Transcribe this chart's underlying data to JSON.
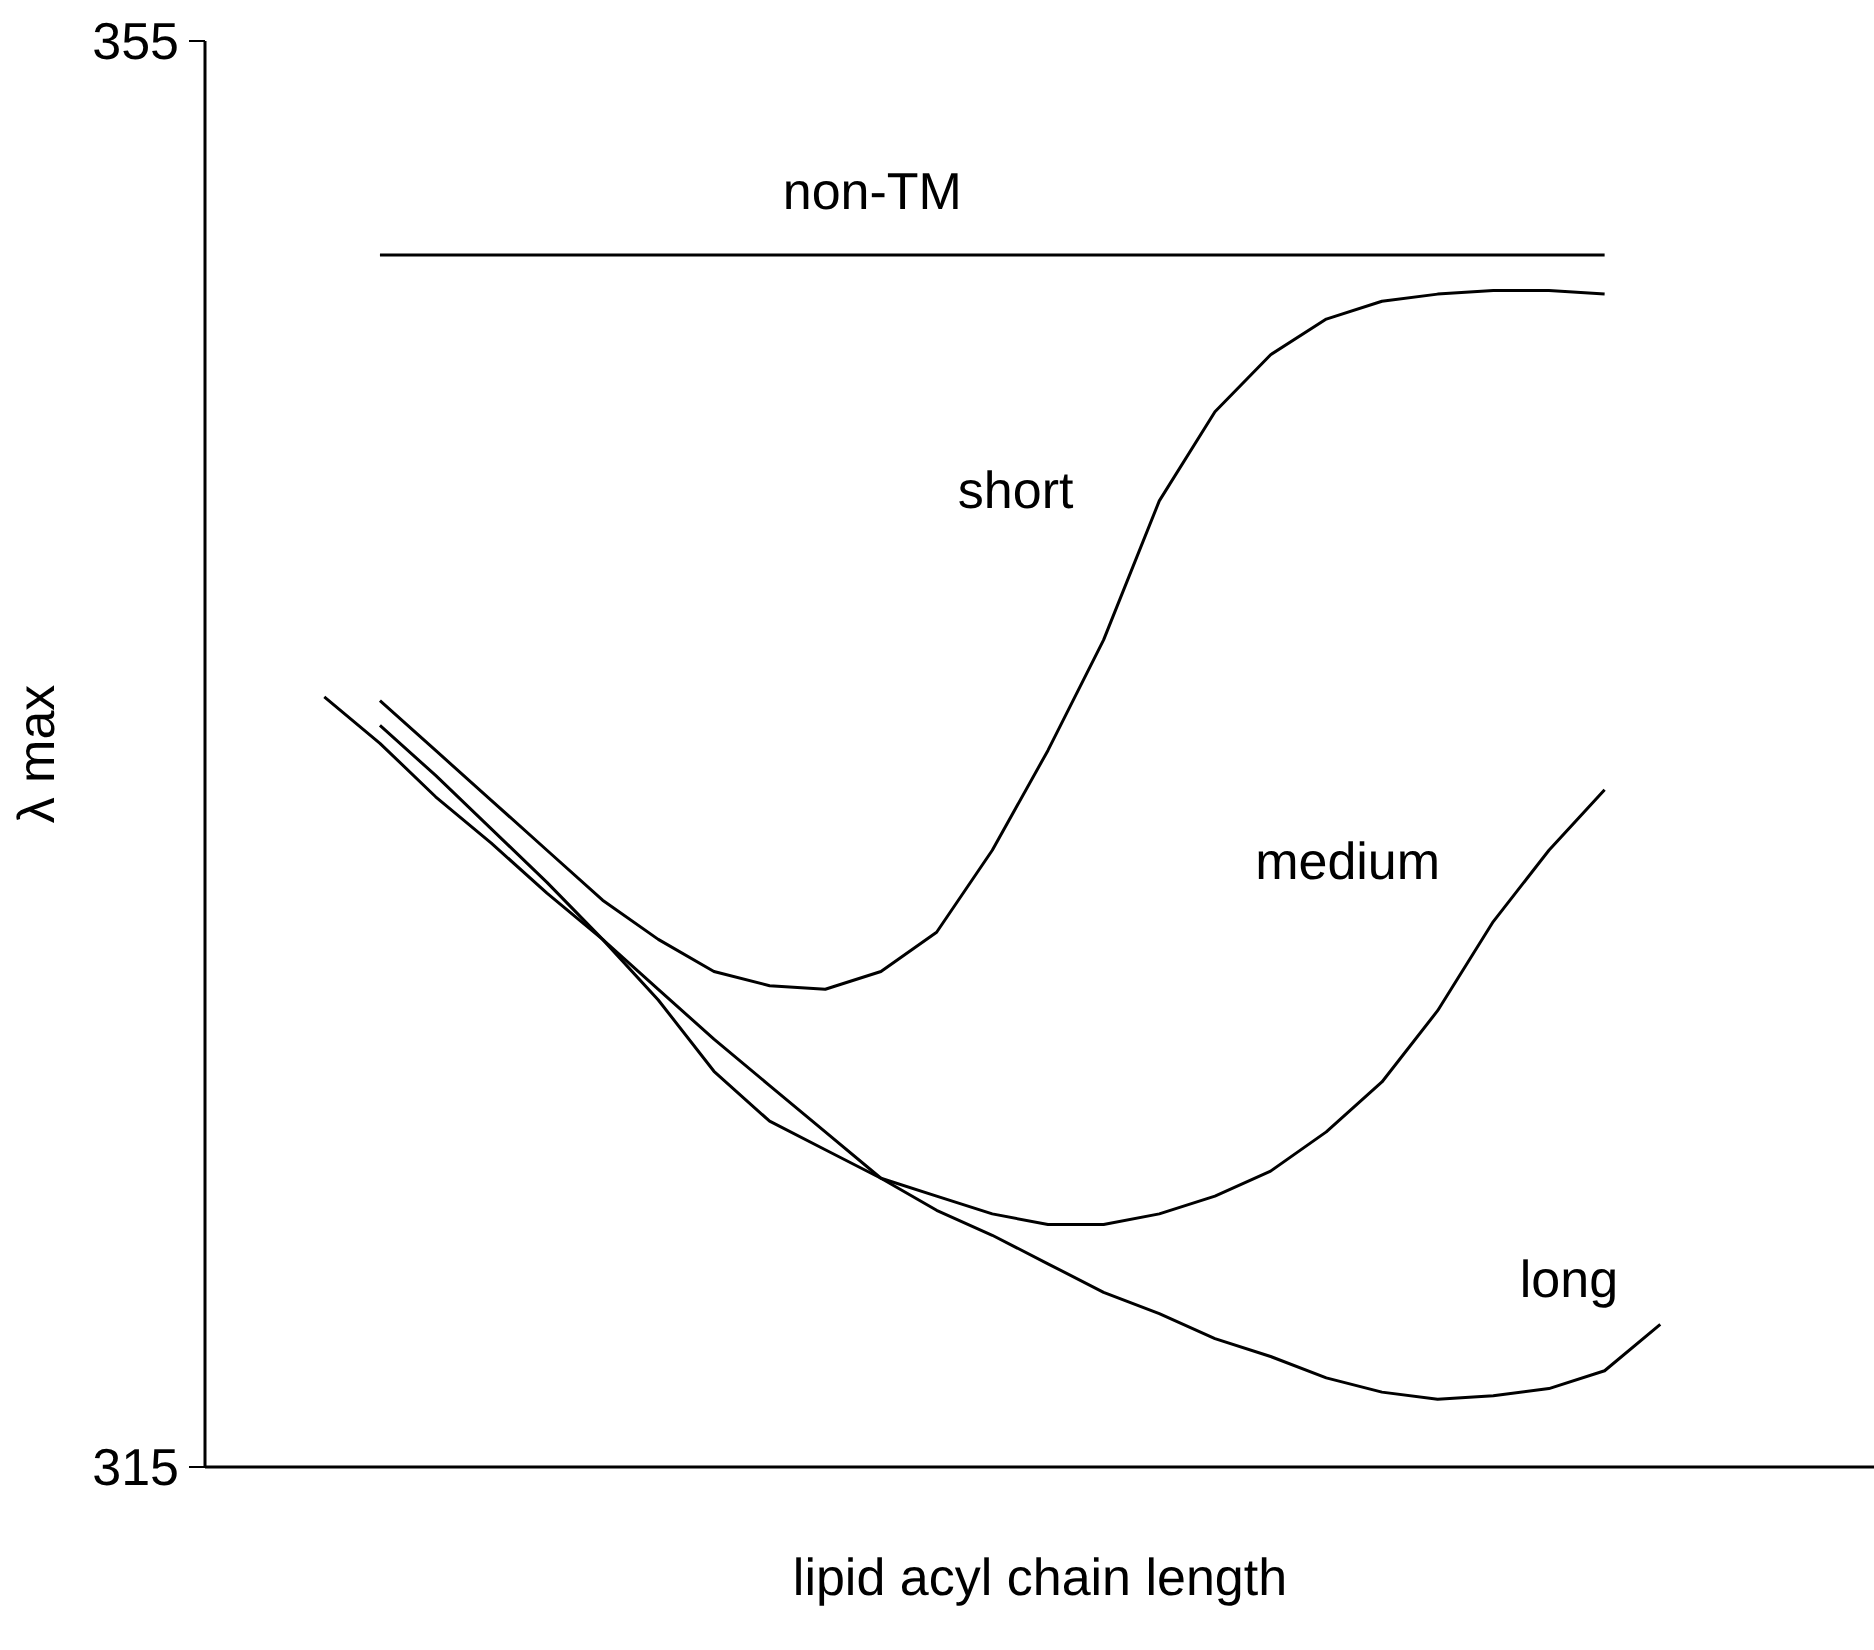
{
  "chart_data": {
    "type": "line",
    "xlabel": "lipid acyl chain length",
    "ylabel": "λ max",
    "categories": [
      null,
      null,
      null,
      null,
      null,
      null,
      null,
      null,
      null,
      null,
      null,
      null,
      null,
      null,
      null,
      null,
      null,
      null,
      null,
      null,
      null,
      null,
      null,
      null,
      null
    ],
    "series": [
      {
        "name": "non-TM",
        "color": "#000000",
        "values": [
          null,
          349.0,
          349.0,
          349.0,
          349.0,
          349.0,
          349.0,
          349.0,
          349.0,
          349.0,
          349.0,
          349.0,
          349.0,
          349.0,
          349.0,
          349.0,
          349.0,
          349.0,
          349.0,
          349.0,
          349.0,
          349.0,
          349.0,
          349.0,
          null
        ]
      },
      {
        "name": "short",
        "color": "#000000",
        "values": [
          null,
          336.5,
          335.1,
          333.7,
          332.3,
          330.9,
          329.8,
          328.9,
          328.5,
          328.4,
          328.9,
          330.0,
          332.3,
          335.1,
          338.2,
          342.1,
          344.6,
          346.2,
          347.2,
          347.7,
          347.9,
          348.0,
          348.0,
          347.9,
          null
        ]
      },
      {
        "name": "medium",
        "color": "#000000",
        "values": [
          null,
          335.8,
          334.4,
          332.9,
          331.4,
          329.8,
          328.1,
          326.1,
          324.7,
          323.9,
          323.1,
          322.6,
          322.1,
          321.8,
          321.8,
          322.1,
          322.6,
          323.3,
          324.4,
          325.8,
          327.8,
          330.3,
          332.3,
          334.0,
          null
        ]
      },
      {
        "name": "long",
        "color": "#000000",
        "values": [
          336.6,
          335.3,
          333.8,
          332.5,
          331.1,
          329.8,
          328.4,
          327.0,
          325.7,
          324.4,
          323.1,
          322.2,
          321.5,
          320.7,
          319.9,
          319.3,
          318.6,
          318.1,
          317.5,
          317.1,
          316.9,
          317.0,
          317.2,
          317.7,
          319.0
        ]
      }
    ],
    "ylim": [
      315,
      355
    ],
    "yticks": [
      315,
      355
    ],
    "tick_labels": "y",
    "line_style": "solid",
    "marker": "none"
  }
}
